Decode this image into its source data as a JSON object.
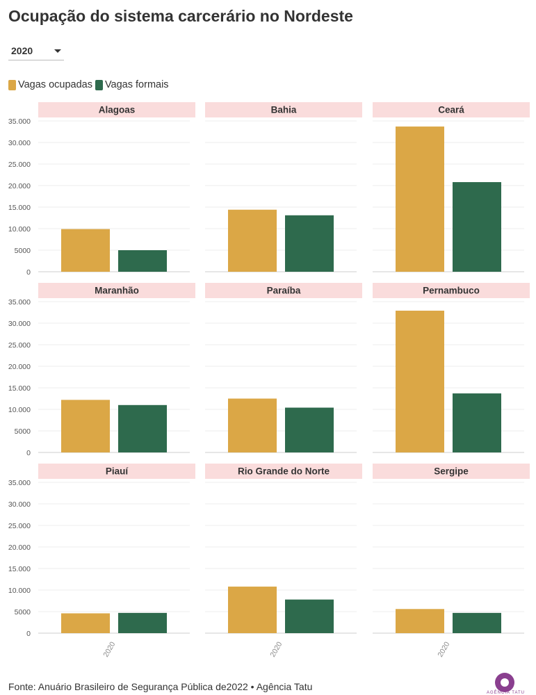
{
  "title": "Ocupação do sistema carcerário no Nordeste",
  "year_selector": {
    "selected": "2020"
  },
  "legend": [
    {
      "label": "Vagas ocupadas",
      "color": "#dba746"
    },
    {
      "label": "Vagas formais",
      "color": "#2e6a4d"
    }
  ],
  "footer": "Fonte: Anuário Brasileiro de Segurança Pública de2022 • Agência Tatu",
  "logo_text": "AGÊNCIA TATU",
  "chart_data": {
    "type": "bar",
    "layout": "small-multiples 3x3",
    "categories": [
      "2020"
    ],
    "series_names": [
      "Vagas ocupadas",
      "Vagas formais"
    ],
    "colors": [
      "#dba746",
      "#2e6a4d"
    ],
    "ylim": [
      0,
      35000
    ],
    "yticks": [
      0,
      5000,
      10000,
      15000,
      20000,
      25000,
      30000,
      35000
    ],
    "ytick_labels": [
      "0",
      "5000",
      "10.000",
      "15.000",
      "20.000",
      "25.000",
      "30.000",
      "35.000"
    ],
    "xlabel": "",
    "ylabel": "",
    "grid": true,
    "header_color": "#fadcdc",
    "panels": [
      {
        "name": "Alagoas",
        "values": [
          9900,
          5000
        ]
      },
      {
        "name": "Bahia",
        "values": [
          14400,
          13100
        ]
      },
      {
        "name": "Ceará",
        "values": [
          33700,
          20800
        ]
      },
      {
        "name": "Maranhão",
        "values": [
          12200,
          11000
        ]
      },
      {
        "name": "Paraíba",
        "values": [
          12500,
          10400
        ]
      },
      {
        "name": "Pernambuco",
        "values": [
          32900,
          13700
        ]
      },
      {
        "name": "Piauí",
        "values": [
          4600,
          4700
        ]
      },
      {
        "name": "Rio Grande do Norte",
        "values": [
          10800,
          7800
        ]
      },
      {
        "name": "Sergipe",
        "values": [
          5600,
          4700
        ]
      }
    ]
  }
}
